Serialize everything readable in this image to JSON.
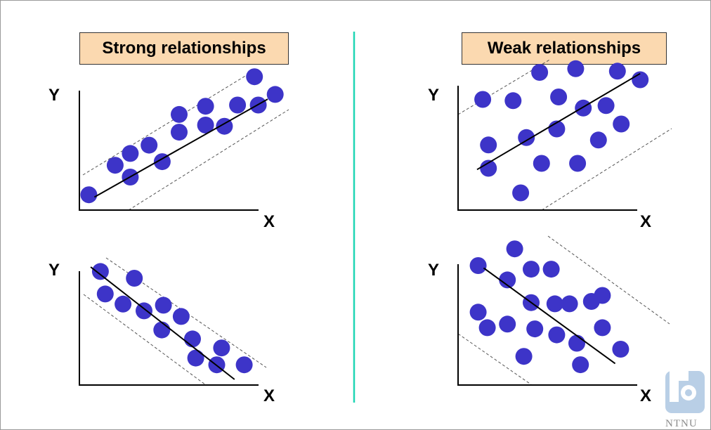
{
  "titles": {
    "strong": "Strong relationships",
    "weak": "Weak relationships"
  },
  "axis": {
    "x": "X",
    "y": "Y"
  },
  "logo": {
    "text": "NTNU",
    "color": "#b9cfe6"
  },
  "colors": {
    "point": "#3d34c8",
    "divider": "#1fd6b4",
    "title_fill": "#fbd9b0"
  },
  "panels": [
    {
      "id": "strong-positive",
      "relationship": "strong",
      "direction": "positive",
      "points": [
        [
          0.05,
          0.13
        ],
        [
          0.19,
          0.38
        ],
        [
          0.27,
          0.48
        ],
        [
          0.37,
          0.55
        ],
        [
          0.27,
          0.28
        ],
        [
          0.44,
          0.41
        ],
        [
          0.53,
          0.66
        ],
        [
          0.53,
          0.81
        ],
        [
          0.67,
          0.72
        ],
        [
          0.67,
          0.88
        ],
        [
          0.77,
          0.71
        ],
        [
          0.84,
          0.89
        ],
        [
          0.93,
          1.13
        ],
        [
          0.95,
          0.89
        ],
        [
          1.04,
          0.98
        ]
      ],
      "fit": [
        [
          0.08,
          0.11
        ],
        [
          1.0,
          0.94
        ]
      ]
    },
    {
      "id": "strong-negative",
      "relationship": "strong",
      "direction": "negative",
      "points": [
        [
          0.13,
          1.01
        ],
        [
          0.16,
          0.81
        ],
        [
          0.27,
          0.72
        ],
        [
          0.34,
          0.95
        ],
        [
          0.4,
          0.66
        ],
        [
          0.51,
          0.49
        ],
        [
          0.52,
          0.71
        ],
        [
          0.63,
          0.61
        ],
        [
          0.7,
          0.41
        ],
        [
          0.72,
          0.24
        ],
        [
          0.85,
          0.18
        ],
        [
          0.88,
          0.33
        ],
        [
          1.02,
          0.18
        ]
      ],
      "fit": [
        [
          0.07,
          1.05
        ],
        [
          0.96,
          0.05
        ]
      ]
    },
    {
      "id": "weak-positive",
      "relationship": "weak",
      "direction": "positive",
      "points": [
        [
          0.13,
          0.9
        ],
        [
          0.16,
          0.53
        ],
        [
          0.16,
          0.34
        ],
        [
          0.29,
          0.89
        ],
        [
          0.33,
          0.14
        ],
        [
          0.36,
          0.59
        ],
        [
          0.43,
          1.12
        ],
        [
          0.44,
          0.38
        ],
        [
          0.52,
          0.66
        ],
        [
          0.53,
          0.92
        ],
        [
          0.62,
          1.15
        ],
        [
          0.63,
          0.38
        ],
        [
          0.66,
          0.83
        ],
        [
          0.74,
          0.57
        ],
        [
          0.78,
          0.85
        ],
        [
          0.84,
          1.13
        ],
        [
          0.86,
          0.7
        ],
        [
          0.96,
          1.06
        ]
      ],
      "fit": [
        [
          0.1,
          0.33
        ],
        [
          0.96,
          1.11
        ]
      ]
    },
    {
      "id": "weak-negative",
      "relationship": "weak",
      "direction": "negative",
      "points": [
        [
          0.11,
          1.0
        ],
        [
          0.11,
          0.61
        ],
        [
          0.16,
          0.48
        ],
        [
          0.27,
          0.88
        ],
        [
          0.27,
          0.51
        ],
        [
          0.31,
          1.14
        ],
        [
          0.36,
          0.24
        ],
        [
          0.4,
          0.97
        ],
        [
          0.4,
          0.69
        ],
        [
          0.42,
          0.47
        ],
        [
          0.51,
          0.97
        ],
        [
          0.53,
          0.68
        ],
        [
          0.54,
          0.42
        ],
        [
          0.61,
          0.68
        ],
        [
          0.65,
          0.35
        ],
        [
          0.67,
          0.17
        ],
        [
          0.73,
          0.7
        ],
        [
          0.79,
          0.48
        ],
        [
          0.79,
          0.75
        ],
        [
          0.89,
          0.3
        ]
      ],
      "fit": [
        [
          0.14,
          0.98
        ],
        [
          0.86,
          0.18
        ]
      ]
    }
  ]
}
